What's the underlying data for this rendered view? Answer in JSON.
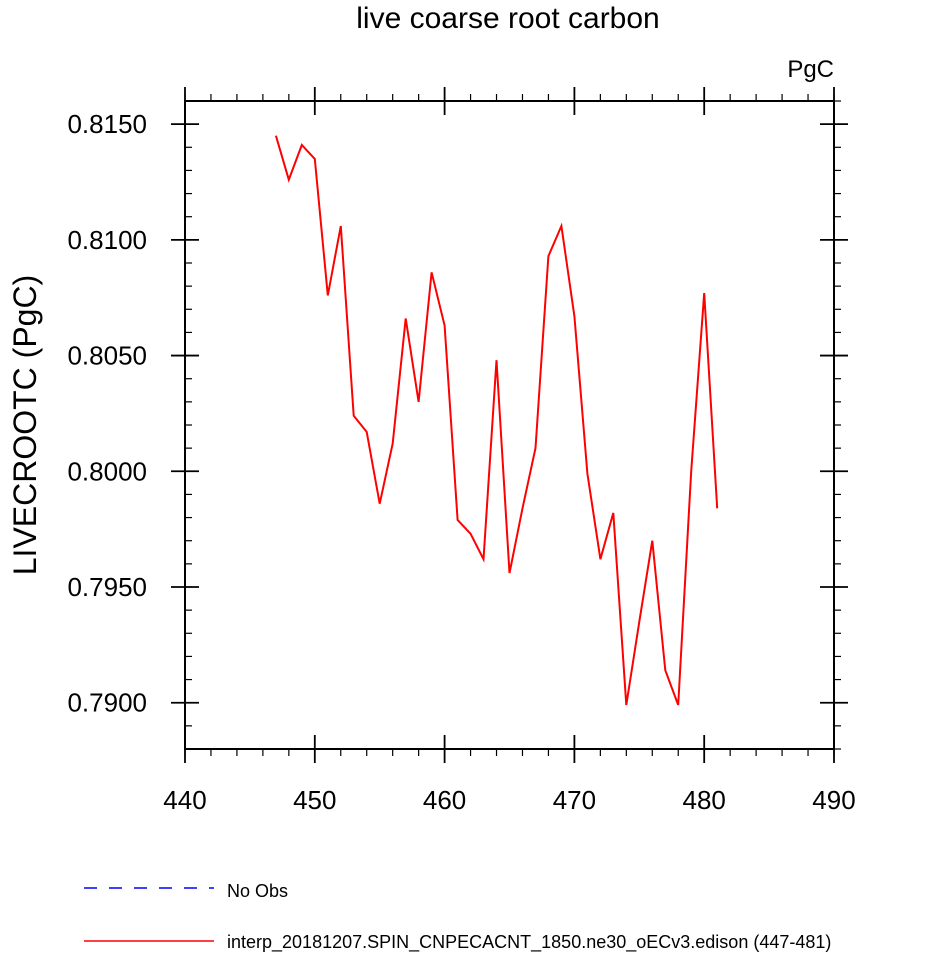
{
  "chart_data": {
    "type": "line",
    "title": "live coarse root carbon",
    "units_label": "PgC",
    "xlabel": "",
    "ylabel": "LIVECROOTC  (PgC)",
    "xlim": [
      440,
      490
    ],
    "ylim": [
      0.788,
      0.816
    ],
    "xticks": [
      440,
      450,
      460,
      470,
      480,
      490
    ],
    "xtick_labels": [
      "440",
      "450",
      "460",
      "470",
      "480",
      "490"
    ],
    "yticks": [
      0.79,
      0.795,
      0.8,
      0.805,
      0.81,
      0.815
    ],
    "ytick_labels": [
      "0.7900",
      "0.7950",
      "0.8000",
      "0.8050",
      "0.8100",
      "0.8150"
    ],
    "x_minor_step": 2,
    "y_minor_step": 0.001,
    "series": [
      {
        "name": "interp_20181207.SPIN_CNPECACNT_1850.ne30_oECv3.edison (447-481)",
        "color": "#ff0000",
        "dash": "solid",
        "x": [
          447,
          448,
          449,
          450,
          451,
          452,
          453,
          454,
          455,
          456,
          457,
          458,
          459,
          460,
          461,
          462,
          463,
          464,
          465,
          466,
          467,
          468,
          469,
          470,
          471,
          472,
          473,
          474,
          475,
          476,
          477,
          478,
          479,
          480,
          481
        ],
        "values": [
          0.8145,
          0.8126,
          0.8141,
          0.8135,
          0.8076,
          0.8106,
          0.8024,
          0.8017,
          0.7986,
          0.8012,
          0.8066,
          0.803,
          0.8086,
          0.8063,
          0.7979,
          0.7973,
          0.7962,
          0.8048,
          0.7956,
          0.7984,
          0.801,
          0.8093,
          0.8106,
          0.8067,
          0.7999,
          0.7962,
          0.7982,
          0.7899,
          0.7935,
          0.797,
          0.7914,
          0.7899,
          0.8,
          0.8077,
          0.7984
        ]
      },
      {
        "name": "No Obs",
        "color": "#0000ff",
        "dash": "dashed",
        "x": [],
        "values": []
      }
    ],
    "legend": {
      "position": "bottom-left",
      "entries": [
        {
          "label": "No Obs",
          "color": "#0000ff",
          "dash": "dashed"
        },
        {
          "label": "interp_20181207.SPIN_CNPECACNT_1850.ne30_oECv3.edison (447-481)",
          "color": "#ff0000",
          "dash": "solid"
        }
      ]
    }
  }
}
